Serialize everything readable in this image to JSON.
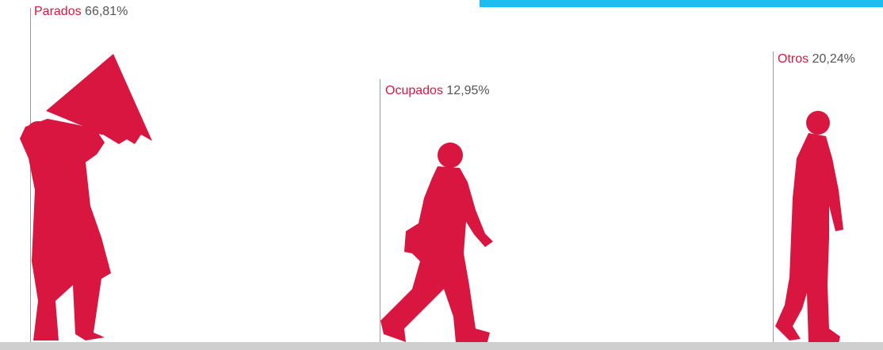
{
  "items": [
    {
      "label": "Parados",
      "value": "66,81%"
    },
    {
      "label": "Ocupados",
      "value": "12,95%"
    },
    {
      "label": "Otros",
      "value": "20,24%"
    }
  ]
}
